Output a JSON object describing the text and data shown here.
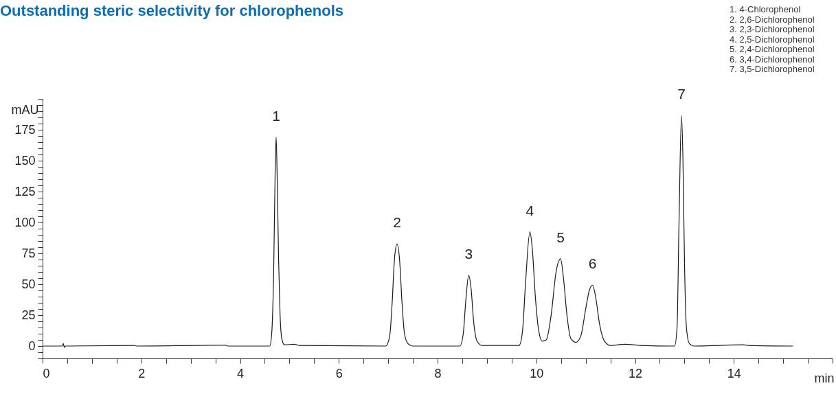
{
  "chart_data": {
    "type": "line",
    "title": "Outstanding steric selectivity for chlorophenols",
    "xlabel": "min",
    "ylabel": "mAU",
    "x": [
      0,
      0.4,
      0.42,
      0.44,
      0.46,
      1.85,
      1.9,
      3.7,
      3.75,
      4.6,
      4.64,
      4.68,
      4.71,
      4.73,
      4.75,
      4.78,
      4.81,
      4.85,
      4.9,
      5.1,
      5.2,
      6.95,
      7.03,
      7.08,
      7.13,
      7.18,
      7.23,
      7.28,
      7.33,
      7.4,
      7.5,
      8.45,
      8.52,
      8.57,
      8.63,
      8.68,
      8.73,
      8.8,
      8.9,
      9.65,
      9.72,
      9.78,
      9.87,
      9.92,
      9.98,
      10.05,
      10.12,
      10.2,
      10.3,
      10.4,
      10.49,
      10.55,
      10.62,
      10.7,
      10.8,
      10.9,
      11.0,
      11.08,
      11.14,
      11.2,
      11.28,
      11.38,
      11.5,
      11.8,
      12.1,
      12.8,
      12.85,
      12.89,
      12.94,
      12.97,
      13.0,
      13.04,
      13.1,
      13.2,
      14.2,
      14.3,
      15.2
    ],
    "series": [
      {
        "color": "#1a1a1a",
        "values": [
          0,
          0,
          2,
          -1,
          0,
          0.5,
          0,
          0.8,
          0,
          0,
          10,
          60,
          140,
          169,
          140,
          70,
          25,
          5,
          1,
          1.5,
          0.5,
          0,
          8,
          35,
          72,
          82.6,
          70,
          35,
          10,
          2,
          0,
          0,
          10,
          36,
          57.3,
          46,
          20,
          4,
          0.5,
          0.5,
          12,
          50,
          92.4,
          78,
          40,
          12,
          4,
          5,
          25,
          60,
          70.6,
          55,
          25,
          6,
          3,
          8,
          30,
          46,
          49.3,
          40,
          18,
          4,
          0.5,
          1.5,
          0.5,
          0,
          15,
          100,
          186.6,
          150,
          70,
          15,
          2,
          0,
          1,
          0.5,
          0
        ]
      }
    ],
    "xlim": [
      0,
      16
    ],
    "ylim": [
      -10,
      200
    ],
    "xticks": [
      0,
      {
        "value": 0.5,
        "label": null
      },
      {
        "value": 1,
        "label": null
      },
      {
        "value": 1.5,
        "label": null
      },
      2,
      {
        "value": 2.5,
        "label": null
      },
      {
        "value": 3,
        "label": null
      },
      {
        "value": 3.5,
        "label": null
      },
      4,
      {
        "value": 4.5,
        "label": null
      },
      {
        "value": 5,
        "label": null
      },
      {
        "value": 5.5,
        "label": null
      },
      6,
      {
        "value": 6.5,
        "label": null
      },
      {
        "value": 7,
        "label": null
      },
      {
        "value": 7.5,
        "label": null
      },
      8,
      {
        "value": 8.5,
        "label": null
      },
      {
        "value": 9,
        "label": null
      },
      {
        "value": 9.5,
        "label": null
      },
      10,
      {
        "value": 10.5,
        "label": null
      },
      {
        "value": 11,
        "label": null
      },
      {
        "value": 11.5,
        "label": null
      },
      12,
      {
        "value": 12.5,
        "label": null
      },
      {
        "value": 13,
        "label": null
      },
      {
        "value": 13.5,
        "label": null
      },
      14,
      {
        "value": 14.5,
        "label": null
      },
      {
        "value": 15,
        "label": null
      },
      {
        "value": 15.5,
        "label": null
      },
      {
        "value": 16,
        "label": null
      }
    ],
    "yticks": [
      {
        "value": -10,
        "label": null
      },
      {
        "value": -5,
        "label": null
      },
      0,
      {
        "value": 5,
        "label": null
      },
      {
        "value": 10,
        "label": null
      },
      {
        "value": 15,
        "label": null
      },
      {
        "value": 20,
        "label": null
      },
      25,
      {
        "value": 30,
        "label": null
      },
      {
        "value": 35,
        "label": null
      },
      {
        "value": 40,
        "label": null
      },
      {
        "value": 45,
        "label": null
      },
      50,
      {
        "value": 55,
        "label": null
      },
      {
        "value": 60,
        "label": null
      },
      {
        "value": 65,
        "label": null
      },
      {
        "value": 70,
        "label": null
      },
      75,
      {
        "value": 80,
        "label": null
      },
      {
        "value": 85,
        "label": null
      },
      {
        "value": 90,
        "label": null
      },
      {
        "value": 95,
        "label": null
      },
      100,
      {
        "value": 105,
        "label": null
      },
      {
        "value": 110,
        "label": null
      },
      {
        "value": 115,
        "label": null
      },
      {
        "value": 120,
        "label": null
      },
      125,
      {
        "value": 130,
        "label": null
      },
      {
        "value": 135,
        "label": null
      },
      {
        "value": 140,
        "label": null
      },
      {
        "value": 145,
        "label": null
      },
      150,
      {
        "value": 155,
        "label": null
      },
      {
        "value": 160,
        "label": null
      },
      {
        "value": 165,
        "label": null
      },
      {
        "value": 170,
        "label": null
      },
      175,
      {
        "value": 180,
        "label": null
      },
      {
        "value": 185,
        "label": null
      },
      {
        "value": 190,
        "label": null
      },
      {
        "value": 195,
        "label": null
      },
      {
        "value": 200,
        "label": null
      }
    ],
    "grid": false,
    "marker": "none",
    "line_style": "solid",
    "annotations": [
      {
        "text": "1",
        "x": 4.73,
        "y": 169
      },
      {
        "text": "2",
        "x": 7.18,
        "y": 82.6
      },
      {
        "text": "3",
        "x": 8.63,
        "y": 57.3
      },
      {
        "text": "4",
        "x": 9.87,
        "y": 92.4
      },
      {
        "text": "5",
        "x": 10.49,
        "y": 70.6
      },
      {
        "text": "6",
        "x": 11.14,
        "y": 49.3
      },
      {
        "text": "7",
        "x": 12.94,
        "y": 186.6
      },
      "1.  4-Chlorophenol",
      "2.  2,6-Dichlorophenol",
      "3.  2,3-Dichlorophenol",
      "4.  2,5-Dichlorophenol",
      "5.  2,4-Dichlorophenol",
      "6.  3,4-Dichlorophenol",
      "7.  3,5-Dichlorophenol"
    ]
  }
}
